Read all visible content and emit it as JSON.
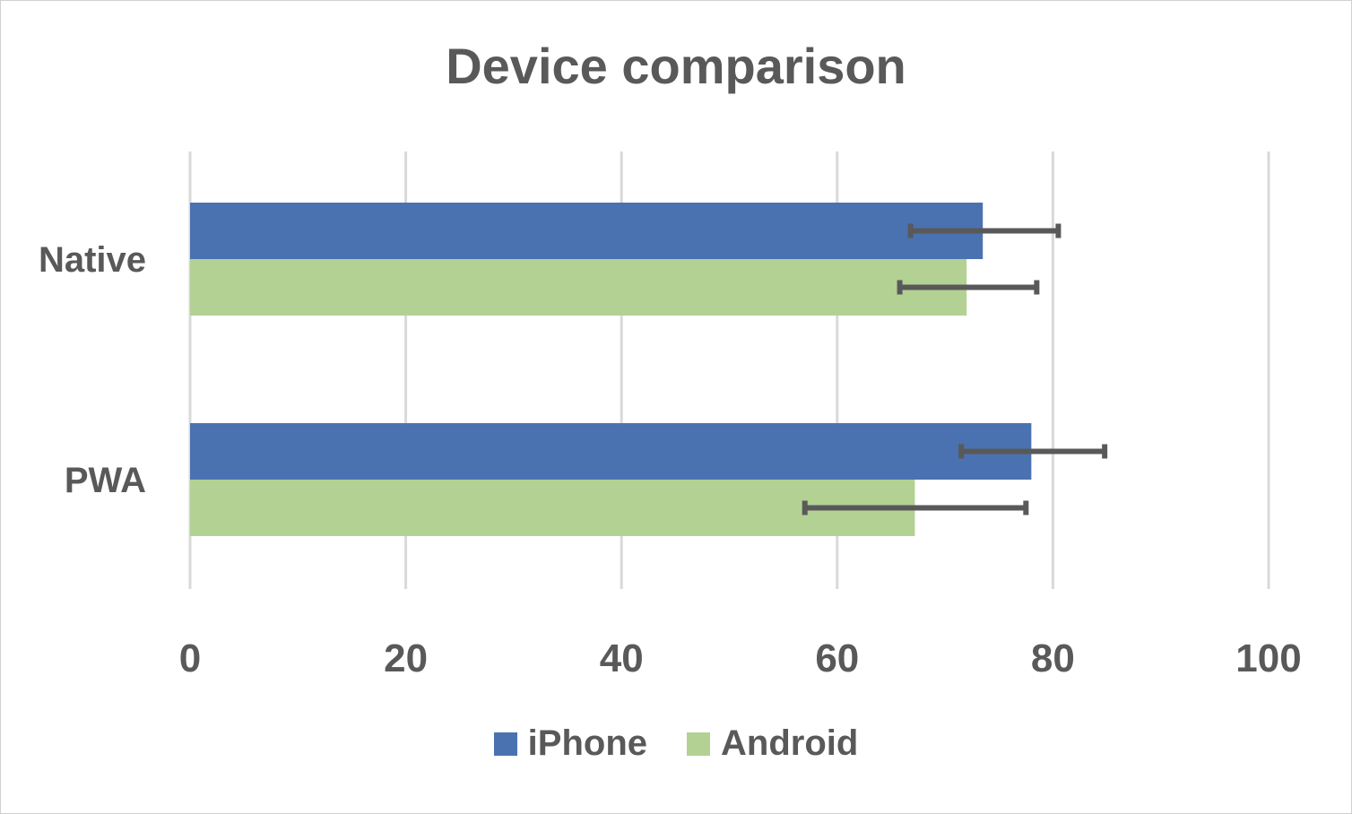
{
  "chart_data": {
    "type": "bar",
    "orientation": "horizontal",
    "title": "Device comparison",
    "categories": [
      "Native",
      "PWA"
    ],
    "series": [
      {
        "name": "iPhone",
        "color": "#4a72b0",
        "values": [
          73.5,
          78
        ],
        "error_low": [
          66.8,
          71.5
        ],
        "error_high": [
          80.5,
          84.8
        ]
      },
      {
        "name": "Android",
        "color": "#b3d193",
        "values": [
          72,
          67.2
        ],
        "error_low": [
          65.8,
          57.0
        ],
        "error_high": [
          78.5,
          77.5
        ]
      }
    ],
    "x_ticks": [
      "0",
      "20",
      "40",
      "60",
      "80",
      "100"
    ],
    "xlim": [
      0,
      100
    ],
    "grid": "vertical",
    "legend_position": "bottom"
  }
}
